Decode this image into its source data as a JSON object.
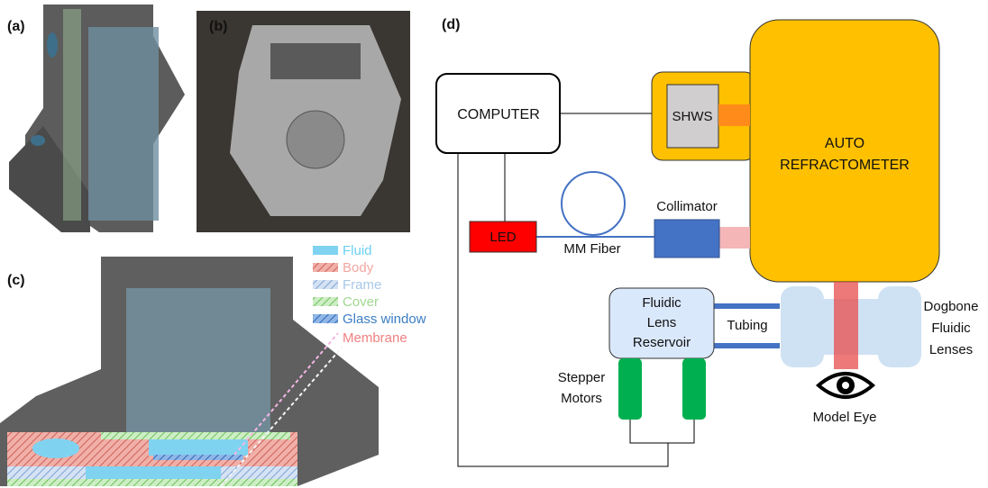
{
  "panels": {
    "a": {
      "label": "(a)"
    },
    "b": {
      "label": "(b)"
    },
    "c": {
      "label": "(c)",
      "legend": [
        "Fluid",
        "Body",
        "Frame",
        "Cover",
        "Glass window",
        "Membrane"
      ]
    },
    "d": {
      "label": "(d)"
    }
  },
  "diagram": {
    "computer": "COMPUTER",
    "shws": "SHWS",
    "autorefractometer": [
      "AUTO",
      "REFRACTOMETER"
    ],
    "led": "LED",
    "fiber": "MM Fiber",
    "collimator": "Collimator",
    "reservoir": [
      "Fluidic",
      "Lens",
      "Reservoir"
    ],
    "tubing": "Tubing",
    "motors": [
      "Stepper",
      "Motors"
    ],
    "lenses": [
      "Dogbone",
      "Fluidic",
      "Lenses"
    ],
    "eye": "Model Eye"
  }
}
